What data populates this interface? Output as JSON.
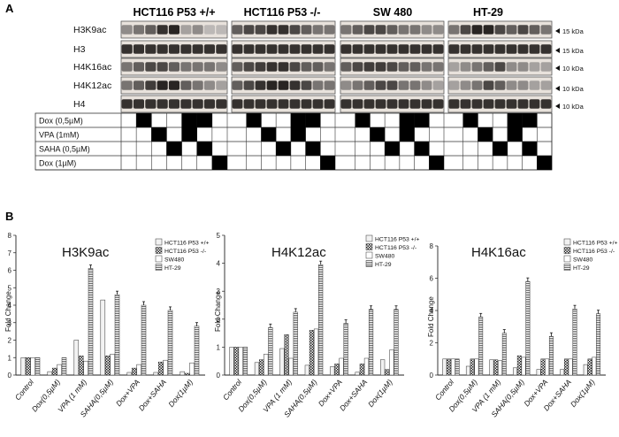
{
  "panel_labels": {
    "a": "A",
    "b": "B"
  },
  "blot": {
    "cell_lines": [
      "HCT116 P53 +/+",
      "HCT116 P53 -/-",
      "SW 480",
      "HT-29"
    ],
    "rows": [
      {
        "label": "H3K9ac",
        "kda": "15 kDa"
      },
      {
        "label": "H3",
        "kda": "15 kDa"
      },
      {
        "label": "H4K16ac",
        "kda": "10 kDa"
      },
      {
        "label": "H4K12ac",
        "kda": "10 kDa"
      },
      {
        "label": "H4",
        "kda": "10 kDa"
      }
    ],
    "treatments": [
      "Dox (0,5µM)",
      "VPA (1mM)",
      "SAHA (0,5µM)",
      "Dox (1µM)"
    ],
    "treatment_matrix": [
      [
        0,
        1,
        0,
        0,
        1,
        1,
        0
      ],
      [
        0,
        0,
        1,
        0,
        1,
        0,
        0
      ],
      [
        0,
        0,
        0,
        1,
        0,
        1,
        0
      ],
      [
        0,
        0,
        0,
        0,
        0,
        0,
        1
      ]
    ]
  },
  "colors": {
    "bar_edge": "#333333",
    "bar_fill": "#f2f2f2",
    "band": "#1a1a1a"
  },
  "chart_data": [
    {
      "type": "bar",
      "title": "H3K9ac",
      "ylabel": "Fold Change",
      "ylim": [
        0,
        8
      ],
      "yticks": [
        "0",
        "1",
        "2",
        "3",
        "4",
        "5",
        "6",
        "7",
        "8"
      ],
      "categories": [
        "Control",
        "Dox(0,5µM)",
        "VPA (1 mM)",
        "SAHA(0,5µM)",
        "Dox+VPA",
        "Dox+SAHA",
        "Dox(1µM)"
      ],
      "legend_position": "top-right",
      "series": [
        {
          "name": "HCT116 P53 +/+",
          "values": [
            1.0,
            0.2,
            2.0,
            4.3,
            0.15,
            0.15,
            0.2
          ]
        },
        {
          "name": "HCT116 P53 -/-",
          "values": [
            1.0,
            0.4,
            1.1,
            1.1,
            0.4,
            0.75,
            0.1
          ]
        },
        {
          "name": "SW480",
          "values": [
            1.0,
            0.6,
            0.8,
            1.2,
            0.6,
            0.85,
            0.7
          ]
        },
        {
          "name": "HT-29",
          "values": [
            1.0,
            1.0,
            6.1,
            4.6,
            4.0,
            3.7,
            2.8
          ]
        }
      ]
    },
    {
      "type": "bar",
      "title": "H4K12ac",
      "ylabel": "Fold Change",
      "ylim": [
        0,
        5
      ],
      "yticks": [
        "0",
        "1",
        "2",
        "3",
        "4",
        "5"
      ],
      "categories": [
        "Control",
        "Dox(0,5µM)",
        "VPA (1 mM)",
        "SAHA(0,5µM)",
        "Dox+VPA",
        "Dox+SAHA",
        "Dox(1µM)"
      ],
      "legend_position": "top-right",
      "series": [
        {
          "name": "HCT116 P53 +/+",
          "values": [
            1.0,
            0.45,
            0.95,
            0.35,
            0.3,
            0.1,
            0.55
          ]
        },
        {
          "name": "HCT116 P53 -/-",
          "values": [
            1.0,
            0.55,
            1.45,
            1.6,
            0.4,
            0.4,
            0.2
          ]
        },
        {
          "name": "SW480",
          "values": [
            1.0,
            0.75,
            0.6,
            1.65,
            0.6,
            0.6,
            0.9
          ]
        },
        {
          "name": "HT-29",
          "values": [
            1.0,
            1.7,
            2.25,
            3.95,
            1.85,
            2.35,
            2.35
          ]
        }
      ]
    },
    {
      "type": "bar",
      "title": "H4K16ac",
      "ylabel": "Fold Change",
      "ylim": [
        0,
        8
      ],
      "yticks": [
        "0",
        "2",
        "4",
        "6",
        "8"
      ],
      "categories": [
        "Control",
        "Dox(0,5µM)",
        "VPA (1 mM)",
        "SAHA(0,5µM)",
        "Dox+VPA",
        "Dox+SAHA",
        "Dox(1µM)"
      ],
      "legend_position": "top-right",
      "series": [
        {
          "name": "HCT116 P53 +/+",
          "values": [
            1.0,
            0.55,
            0.95,
            0.45,
            0.35,
            0.35,
            0.65
          ]
        },
        {
          "name": "HCT116 P53 -/-",
          "values": [
            1.0,
            1.0,
            0.95,
            1.2,
            1.0,
            1.0,
            1.0
          ]
        },
        {
          "name": "SW480",
          "values": [
            1.0,
            1.0,
            0.9,
            1.1,
            1.0,
            1.0,
            1.1
          ]
        },
        {
          "name": "HT-29",
          "values": [
            1.0,
            3.6,
            2.6,
            5.8,
            2.4,
            4.1,
            3.8
          ]
        }
      ]
    }
  ]
}
